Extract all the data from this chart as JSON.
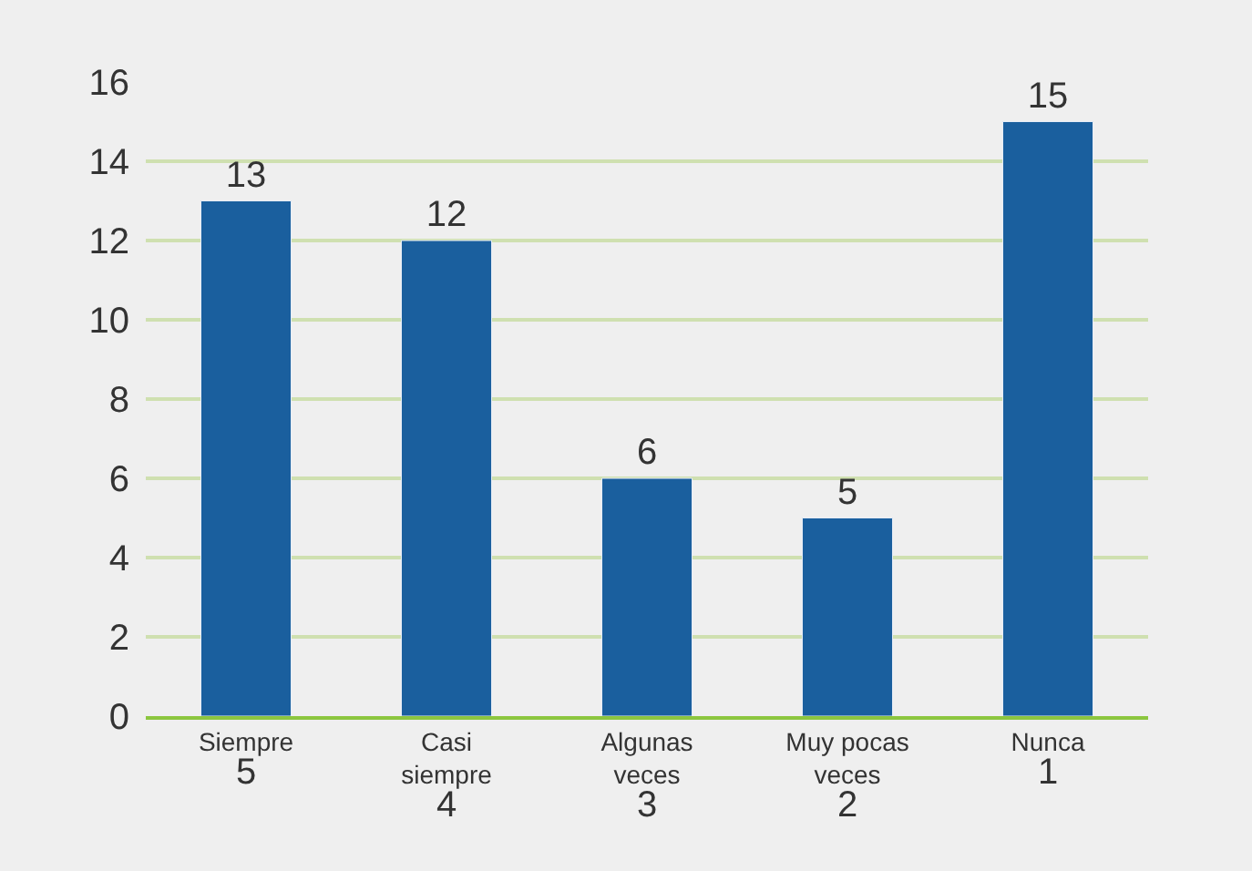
{
  "chart_data": {
    "type": "bar",
    "categories": [
      "Siempre\n5",
      "Casi\nsiempre\n4",
      "Algunas\nveces\n3",
      "Muy pocas\nveces\n2",
      "Nunca\n1"
    ],
    "values": [
      13,
      12,
      6,
      5,
      15
    ],
    "color": "#1a5f9e",
    "ylim": [
      0,
      16
    ],
    "yticks": [
      0,
      2,
      4,
      6,
      8,
      10,
      12,
      14,
      16
    ],
    "grid": "y",
    "data_labels": true
  }
}
